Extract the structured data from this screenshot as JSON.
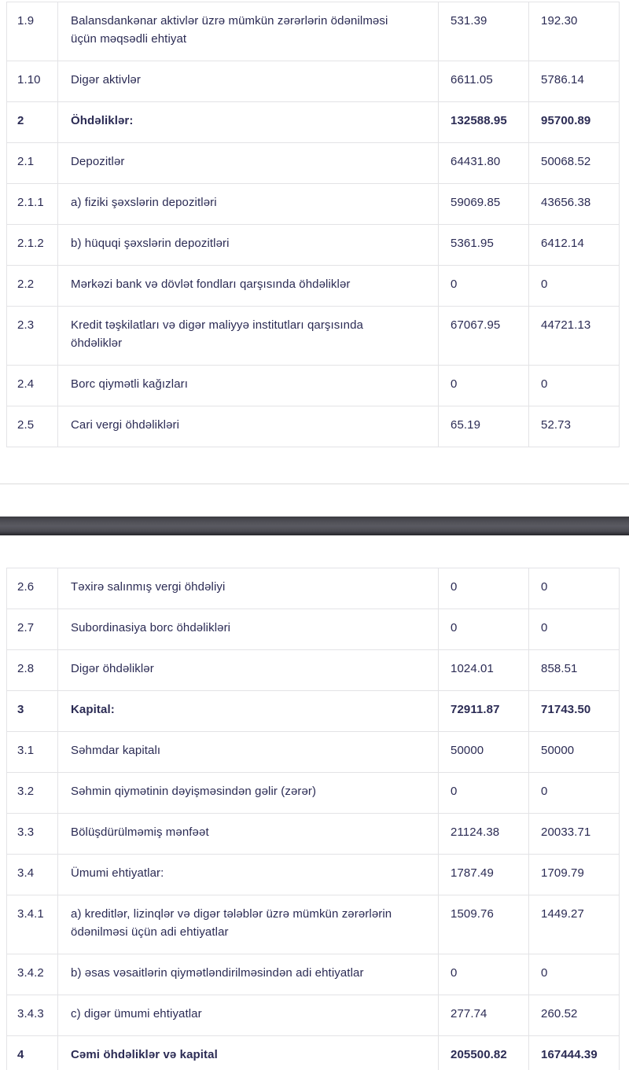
{
  "colors": {
    "background": "#ffffff",
    "text": "#2b2b54",
    "table_border": "#e3e3e6",
    "page_edge_line": "#dcdcdc",
    "divider_bar_top": "#3c3c42",
    "divider_bar_middle": "#5a5a61",
    "divider_bar_bottom": "#26262b"
  },
  "upper_table": {
    "rows": [
      {
        "no": "1.9",
        "label": "Balansdankənar aktivlər üzrə mümkün zərərlərin ödənilməsi üçün məqsədli ehtiyat",
        "val1": "531.39",
        "val2": "192.30",
        "bold": false
      },
      {
        "no": "1.10",
        "label": "Digər aktivlər",
        "val1": "6611.05",
        "val2": "5786.14",
        "bold": false
      },
      {
        "no": "2",
        "label": "Öhdəliklər:",
        "val1": "132588.95",
        "val2": "95700.89",
        "bold": true
      },
      {
        "no": "2.1",
        "label": "Depozitlər",
        "val1": "64431.80",
        "val2": "50068.52",
        "bold": false
      },
      {
        "no": "2.1.1",
        "label": "a) fiziki şəxslərin depozitləri",
        "val1": "59069.85",
        "val2": "43656.38",
        "bold": false
      },
      {
        "no": "2.1.2",
        "label": "b) hüquqi şəxslərin depozitləri",
        "val1": "5361.95",
        "val2": "6412.14",
        "bold": false
      },
      {
        "no": "2.2",
        "label": "Mərkəzi bank və dövlət fondları qarşısında öhdəliklər",
        "val1": "0",
        "val2": "0",
        "bold": false
      },
      {
        "no": "2.3",
        "label": "Kredit təşkilatları və digər maliyyə institutları qarşısında öhdəliklər",
        "val1": "67067.95",
        "val2": "44721.13",
        "bold": false
      },
      {
        "no": "2.4",
        "label": "Borc qiymətli kağızları",
        "val1": "0",
        "val2": "0",
        "bold": false
      },
      {
        "no": "2.5",
        "label": "Cari vergi öhdəlikləri",
        "val1": "65.19",
        "val2": "52.73",
        "bold": false
      }
    ]
  },
  "lower_table": {
    "rows": [
      {
        "no": "2.6",
        "label": "Təxirə salınmış vergi öhdəliyi",
        "val1": "0",
        "val2": "0",
        "bold": false
      },
      {
        "no": "2.7",
        "label": "Subordinasiya borc öhdəlikləri",
        "val1": "0",
        "val2": "0",
        "bold": false
      },
      {
        "no": "2.8",
        "label": "Digər öhdəliklər",
        "val1": "1024.01",
        "val2": "858.51",
        "bold": false
      },
      {
        "no": "3",
        "label": "Kapital:",
        "val1": "72911.87",
        "val2": "71743.50",
        "bold": true
      },
      {
        "no": "3.1",
        "label": "Səhmdar kapitalı",
        "val1": "50000",
        "val2": "50000",
        "bold": false
      },
      {
        "no": "3.2",
        "label": "Səhmin qiymətinin dəyişməsindən gəlir (zərər)",
        "val1": "0",
        "val2": "0",
        "bold": false
      },
      {
        "no": "3.3",
        "label": "Bölüşdürülməmiş mənfəət",
        "val1": "21124.38",
        "val2": "20033.71",
        "bold": false
      },
      {
        "no": "3.4",
        "label": "Ümumi ehtiyatlar:",
        "val1": "1787.49",
        "val2": "1709.79",
        "bold": false
      },
      {
        "no": "3.4.1",
        "label": "a) kreditlər, lizinqlər və digər tələblər üzrə mümkün zərərlərin ödənilməsi üçün adi ehtiyatlar",
        "val1": "1509.76",
        "val2": "1449.27",
        "bold": false
      },
      {
        "no": "3.4.2",
        "label": "b) əsas vəsaitlərin qiymətləndirilməsindən adi ehtiyatlar",
        "val1": "0",
        "val2": "0",
        "bold": false
      },
      {
        "no": "3.4.3",
        "label": "c) digər ümumi ehtiyatlar",
        "val1": "277.74",
        "val2": "260.52",
        "bold": false
      },
      {
        "no": "4",
        "label": "Cəmi öhdəliklər və kapital",
        "val1": "205500.82",
        "val2": "167444.39",
        "bold": true
      }
    ]
  }
}
